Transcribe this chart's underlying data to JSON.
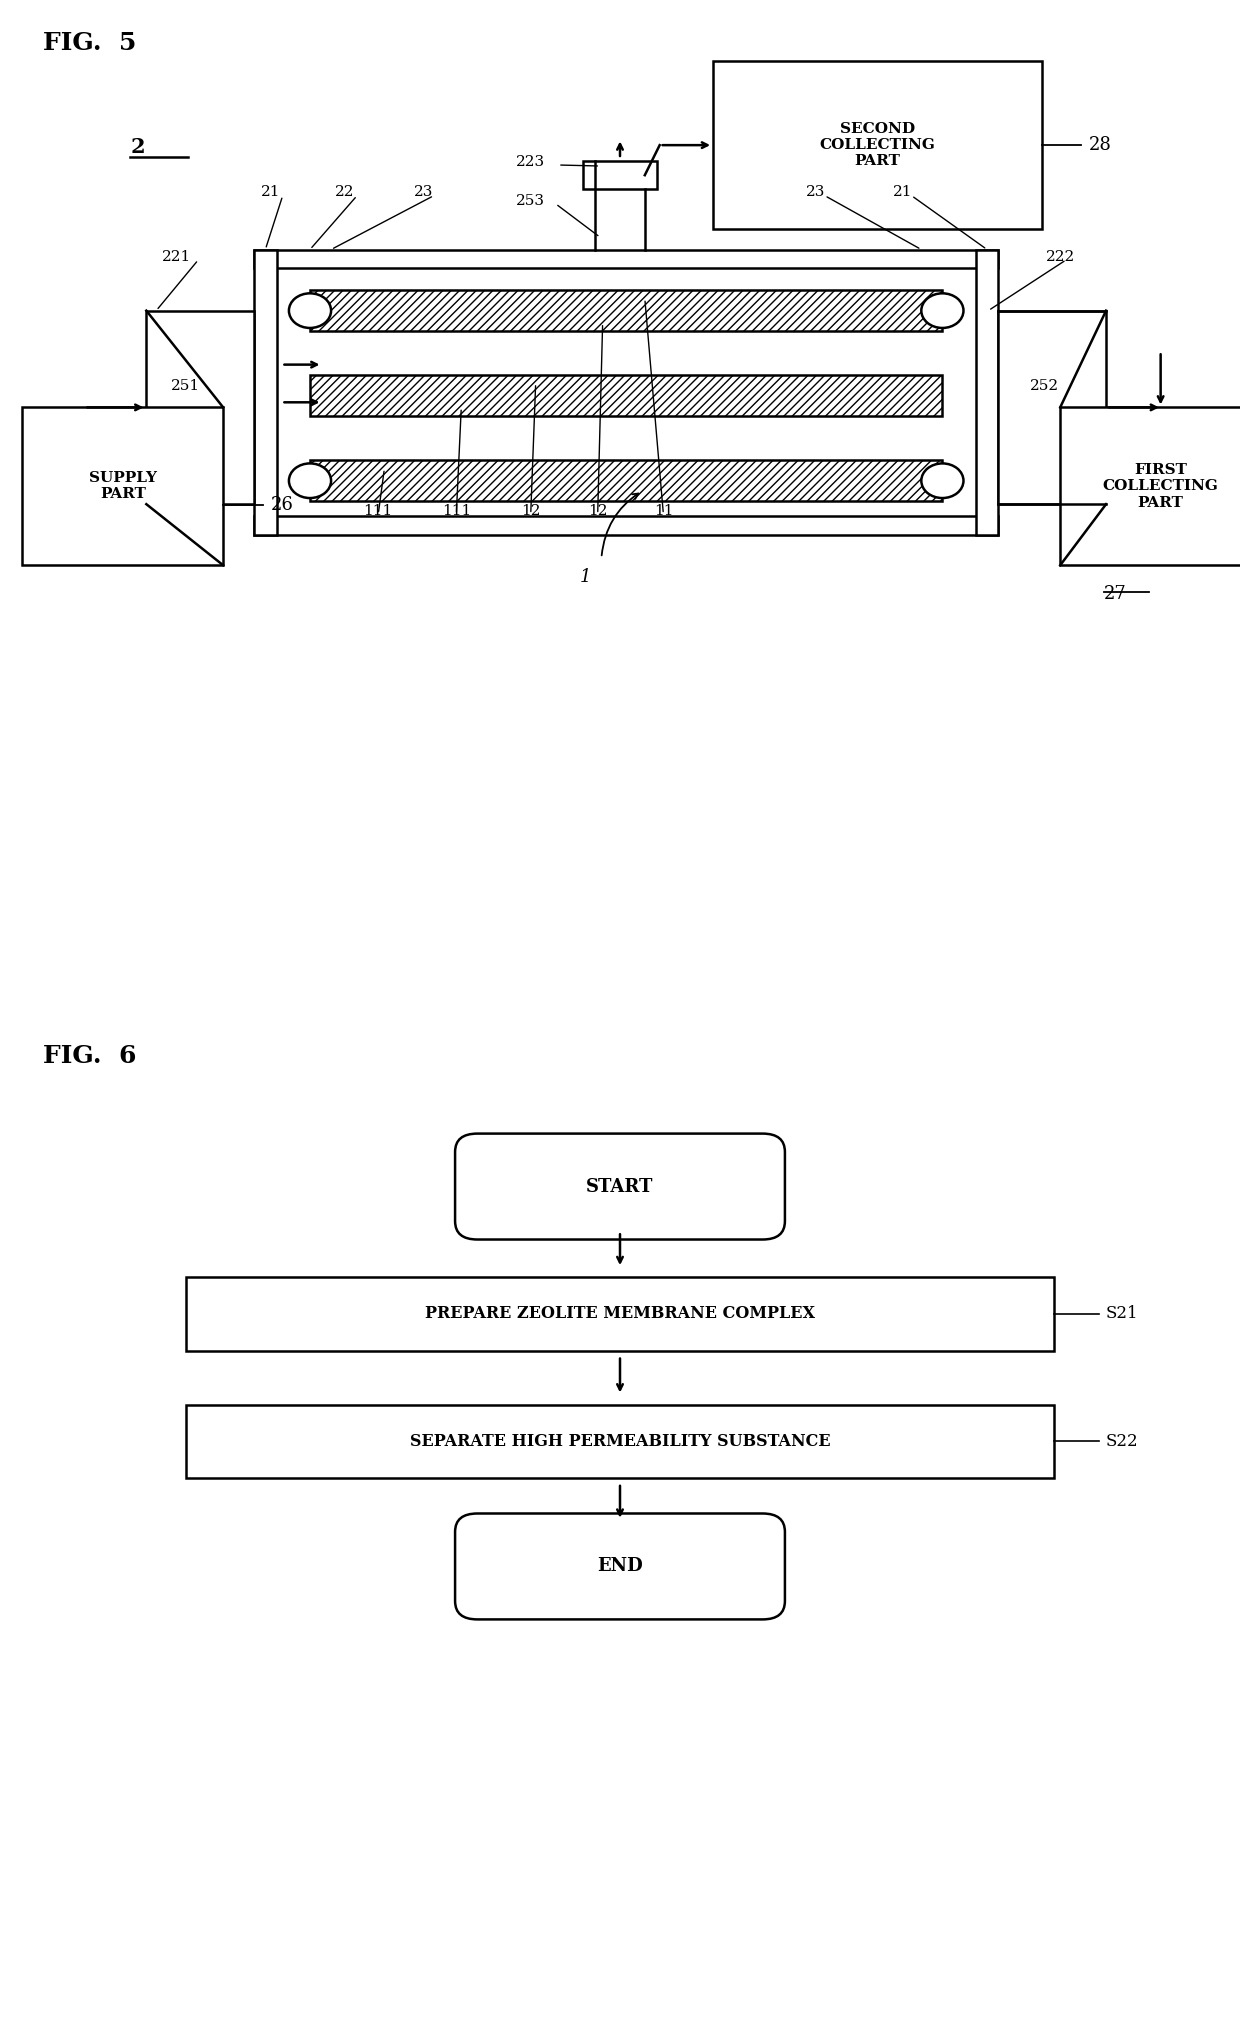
{
  "fig5_title": "FIG.  5",
  "fig6_title": "FIG.  6",
  "bg_color": "#ffffff",
  "line_color": "#000000",
  "label_2": "2",
  "label_28": "28",
  "label_26": "26",
  "label_27": "27",
  "label_21a": "21",
  "label_21b": "21",
  "label_22": "22",
  "label_23a": "23",
  "label_23b": "23",
  "label_221": "221",
  "label_222": "222",
  "label_223": "223",
  "label_251": "251",
  "label_252": "252",
  "label_253": "253",
  "label_111a": "111",
  "label_111b": "111",
  "label_12a": "12",
  "label_12b": "12",
  "label_11": "11",
  "label_1": "1",
  "box_second": "SECOND\nCOLLECTING\nPART",
  "box_supply": "SUPPLY\nPART",
  "box_first": "FIRST\nCOLLECTING\nPART",
  "flow_start": "START",
  "flow_s21": "PREPARE ZEOLITE MEMBRANE COMPLEX",
  "flow_s22": "SEPARATE HIGH PERMEABILITY SUBSTANCE",
  "flow_end": "END",
  "flow_label_s21": "S21",
  "flow_label_s22": "S22"
}
